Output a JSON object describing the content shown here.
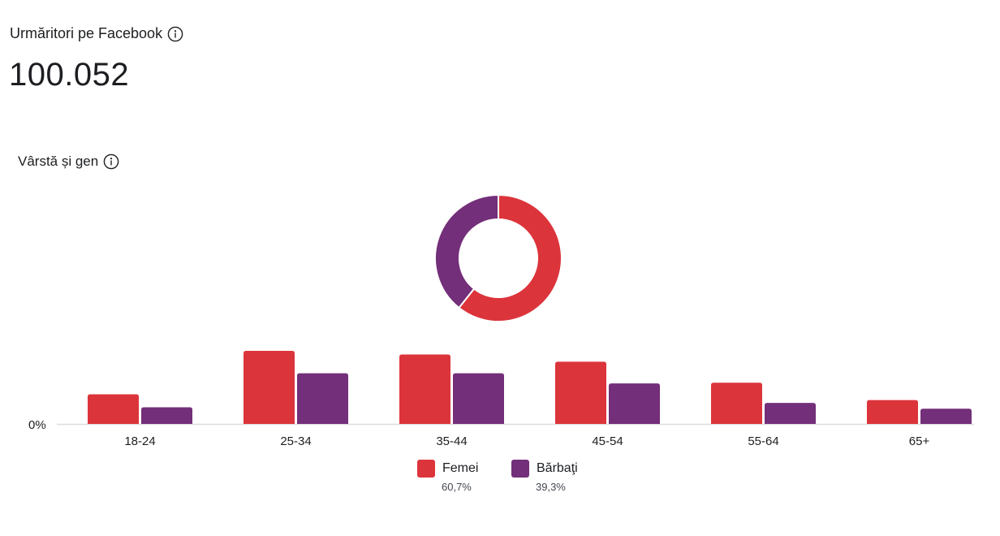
{
  "header": {
    "title": "Urmăritori pe Facebook",
    "count": "100.052",
    "info_icon": "info-icon"
  },
  "section": {
    "title": "Vârstă și gen",
    "info_icon": "info-icon"
  },
  "colors": {
    "femei": "#dc343b",
    "barbati": "#732f79",
    "axis": "#dadde1",
    "text": "#1c1e21"
  },
  "chart_data": [
    {
      "type": "pie",
      "style": "donut",
      "labels": [
        "Femei",
        "Bărbați"
      ],
      "values": [
        60.7,
        39.3
      ]
    },
    {
      "type": "bar",
      "categories": [
        "18-24",
        "25-34",
        "35-44",
        "45-54",
        "55-64",
        "65+"
      ],
      "series": [
        {
          "name": "Femei",
          "values": [
            4.1,
            10.1,
            9.6,
            8.6,
            5.7,
            3.3
          ]
        },
        {
          "name": "Bărbaţi",
          "values": [
            2.3,
            7.0,
            7.0,
            5.6,
            2.9,
            2.1
          ]
        }
      ],
      "ytick_label": "0%",
      "ylim": [
        0,
        10.1
      ],
      "grid": false
    }
  ],
  "legend": {
    "placement": "bottom",
    "items": [
      {
        "label": "Femei",
        "pct": "60,7%"
      },
      {
        "label": "Bărbaţi",
        "pct": "39,3%"
      }
    ]
  }
}
